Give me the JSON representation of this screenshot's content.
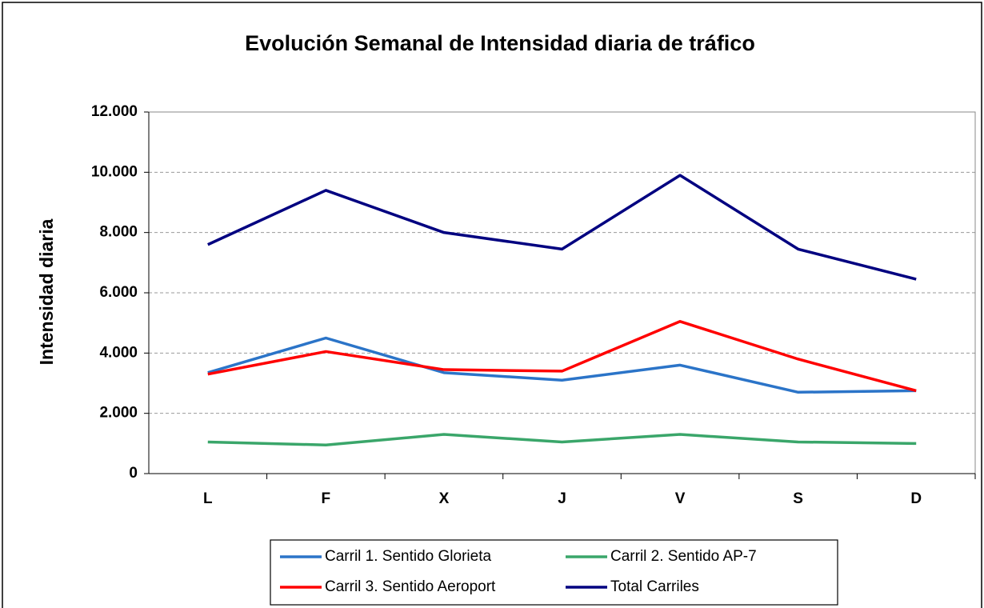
{
  "chart_data": {
    "type": "line",
    "title": "Evolución Semanal de Intensidad diaria de tráfico",
    "y_label": "Intensidad diaria",
    "categories": [
      "L",
      "F",
      "X",
      "J",
      "V",
      "S",
      "D"
    ],
    "series": [
      {
        "name": "Carril 1. Sentido Glorieta",
        "color": "#2b74c8",
        "values": [
          3350,
          4500,
          3350,
          3100,
          3600,
          2700,
          2750
        ]
      },
      {
        "name": "Carril 2. Sentido AP-7",
        "color": "#3aa66a",
        "values": [
          1050,
          950,
          1300,
          1050,
          1300,
          1050,
          1000
        ]
      },
      {
        "name": "Carril 3. Sentido Aeroport",
        "color": "#ff0000",
        "values": [
          3300,
          4050,
          3450,
          3400,
          5050,
          3800,
          2750
        ]
      },
      {
        "name": "Total Carriles",
        "color": "#000080",
        "values": [
          7600,
          9400,
          8000,
          7450,
          9900,
          7450,
          6450
        ]
      }
    ],
    "ylim": [
      0,
      12000
    ],
    "yticks": [
      0,
      {
        "value": 2000,
        "label": "2.000"
      },
      {
        "value": 4000,
        "label": "4.000"
      },
      {
        "value": 6000,
        "label": "6.000"
      },
      {
        "value": 8000,
        "label": "8.000"
      },
      {
        "value": 10000,
        "label": "10.000"
      },
      {
        "value": 12000,
        "label": "12.000"
      }
    ],
    "grid": true
  }
}
